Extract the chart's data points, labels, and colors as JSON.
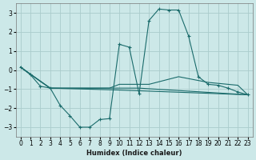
{
  "xlabel": "Humidex (Indice chaleur)",
  "background_color": "#cce8e8",
  "grid_color": "#aacccc",
  "line_color": "#1a6b6b",
  "xlim": [
    -0.5,
    23.5
  ],
  "ylim": [
    -3.5,
    3.5
  ],
  "yticks": [
    -3,
    -2,
    -1,
    0,
    1,
    2,
    3
  ],
  "xticks": [
    0,
    1,
    2,
    3,
    4,
    5,
    6,
    7,
    8,
    9,
    10,
    11,
    12,
    13,
    14,
    15,
    16,
    17,
    18,
    19,
    20,
    21,
    22,
    23
  ],
  "series": [
    {
      "x": [
        0,
        1,
        2,
        3,
        4,
        5,
        6,
        7,
        8,
        9,
        10,
        11,
        12,
        13,
        14,
        15,
        16,
        17,
        18,
        19,
        20,
        21,
        22,
        23
      ],
      "y": [
        0.15,
        -0.25,
        -0.85,
        -0.95,
        -1.85,
        -2.4,
        -3.0,
        -3.0,
        -2.6,
        -2.55,
        1.35,
        1.2,
        -1.25,
        2.6,
        3.2,
        3.15,
        3.15,
        1.8,
        -0.35,
        -0.75,
        -0.8,
        -0.95,
        -1.15,
        -1.3
      ],
      "marker": true
    },
    {
      "x": [
        0,
        2,
        3,
        9,
        10,
        13,
        16,
        19,
        22,
        23
      ],
      "y": [
        0.15,
        -0.6,
        -0.95,
        -0.95,
        -0.75,
        -0.75,
        -0.35,
        -0.65,
        -0.8,
        -1.3
      ],
      "marker": false
    },
    {
      "x": [
        0,
        3,
        9,
        10,
        12,
        23
      ],
      "y": [
        0.15,
        -0.95,
        -0.95,
        -0.95,
        -0.95,
        -1.3
      ],
      "marker": false
    },
    {
      "x": [
        0,
        3,
        10,
        23
      ],
      "y": [
        0.15,
        -0.95,
        -1.05,
        -1.3
      ],
      "marker": false
    }
  ]
}
